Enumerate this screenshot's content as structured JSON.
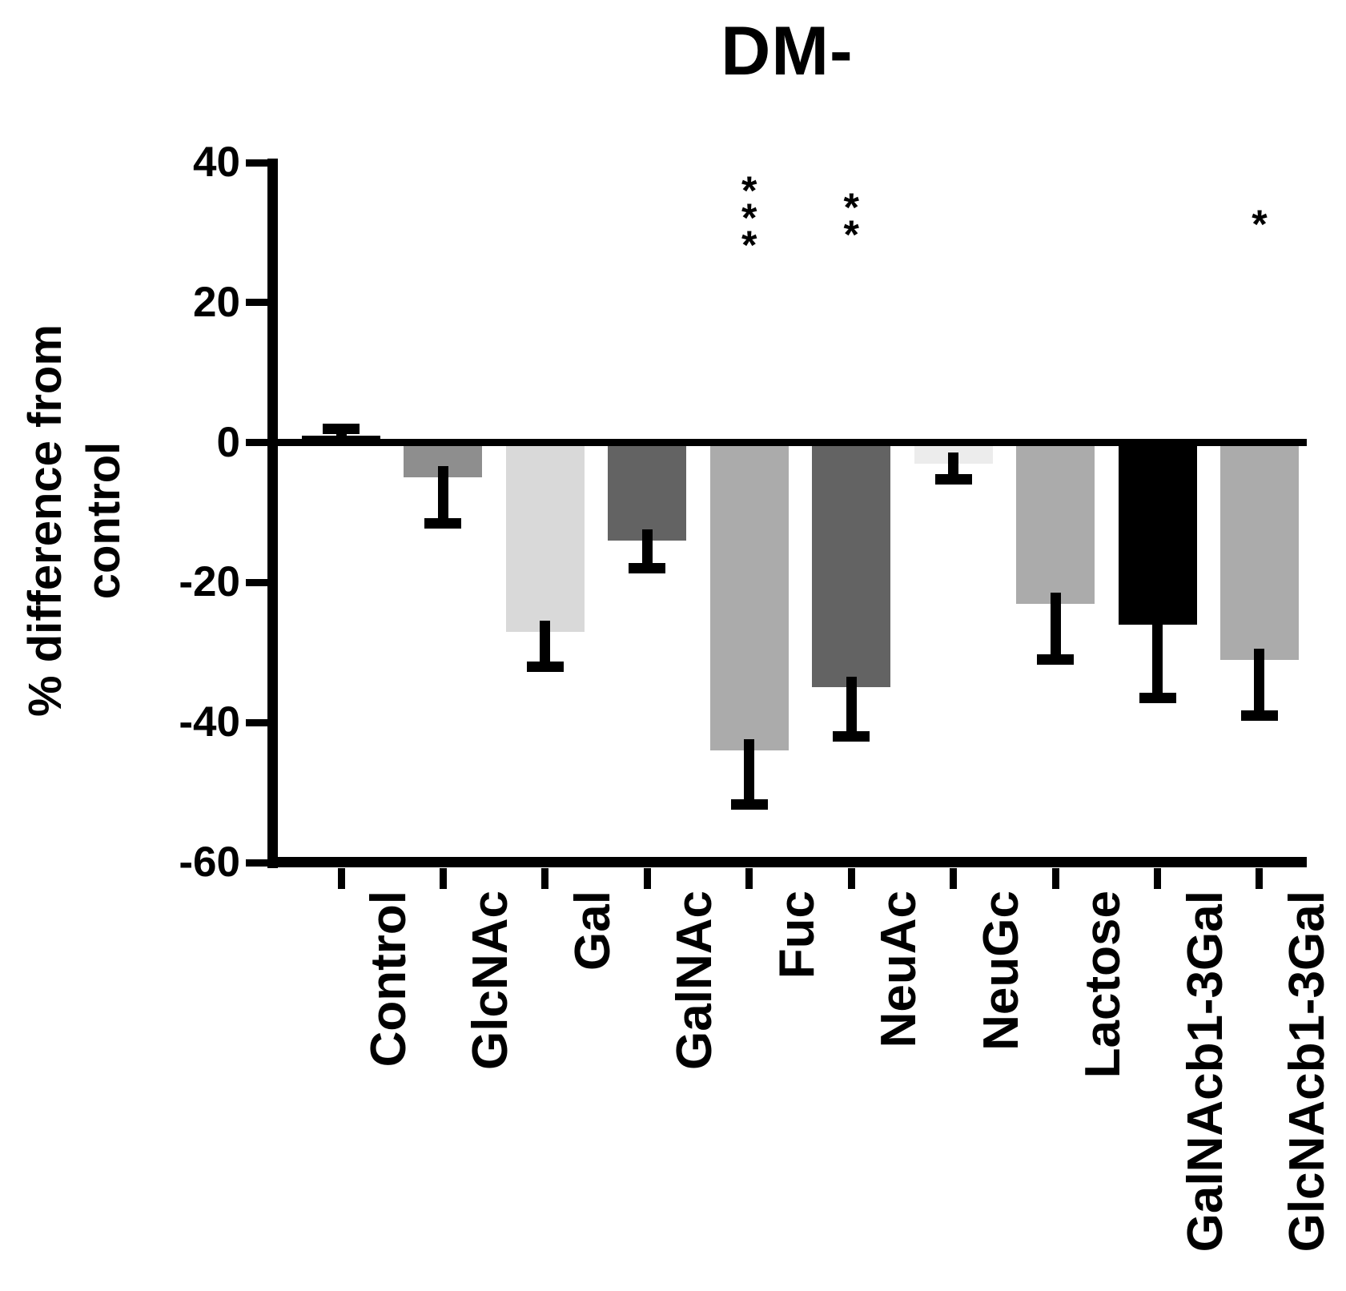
{
  "chart_data": {
    "type": "bar",
    "title": "DM-",
    "ylabel": "% difference from control",
    "ylabel_display": "% difference from\ncontrol",
    "xlabel": "",
    "ylim": [
      -60,
      40
    ],
    "yticks": [
      "40",
      "20",
      "0",
      "-20",
      "-40",
      "-60"
    ],
    "ytick_values": [
      40,
      20,
      0,
      -20,
      -40,
      -60
    ],
    "grid": false,
    "legend": false,
    "categories": [
      "Control",
      "GlcNAc",
      "Gal",
      "GalNAc",
      "Fuc",
      "NeuAc",
      "NeuGc",
      "Lactose",
      "GalNAcb1-3Gal",
      "GlcNAcb1-3Gal"
    ],
    "series": [
      {
        "name": "% difference from control",
        "values": [
          1,
          -5,
          -27,
          -14,
          -44,
          -35,
          -3,
          -23,
          -26,
          -31
        ],
        "errors": [
          1,
          6.5,
          5,
          4,
          7.7,
          7,
          2.3,
          8,
          10.5,
          8
        ],
        "bar_colors": [
          "#000000",
          "#8e8e8e",
          "#d9d9d9",
          "#636363",
          "#ababab",
          "#636363",
          "#ececec",
          "#ababab",
          "#000000",
          "#ababab"
        ]
      }
    ],
    "significance": [
      {
        "category": "Fuc",
        "marker": "***"
      },
      {
        "category": "NeuAc",
        "marker": "**"
      },
      {
        "category": "GlcNAcb1-3Gal",
        "marker": "*"
      }
    ],
    "error_bar_color": "#000000",
    "axis_color": "#000000"
  }
}
